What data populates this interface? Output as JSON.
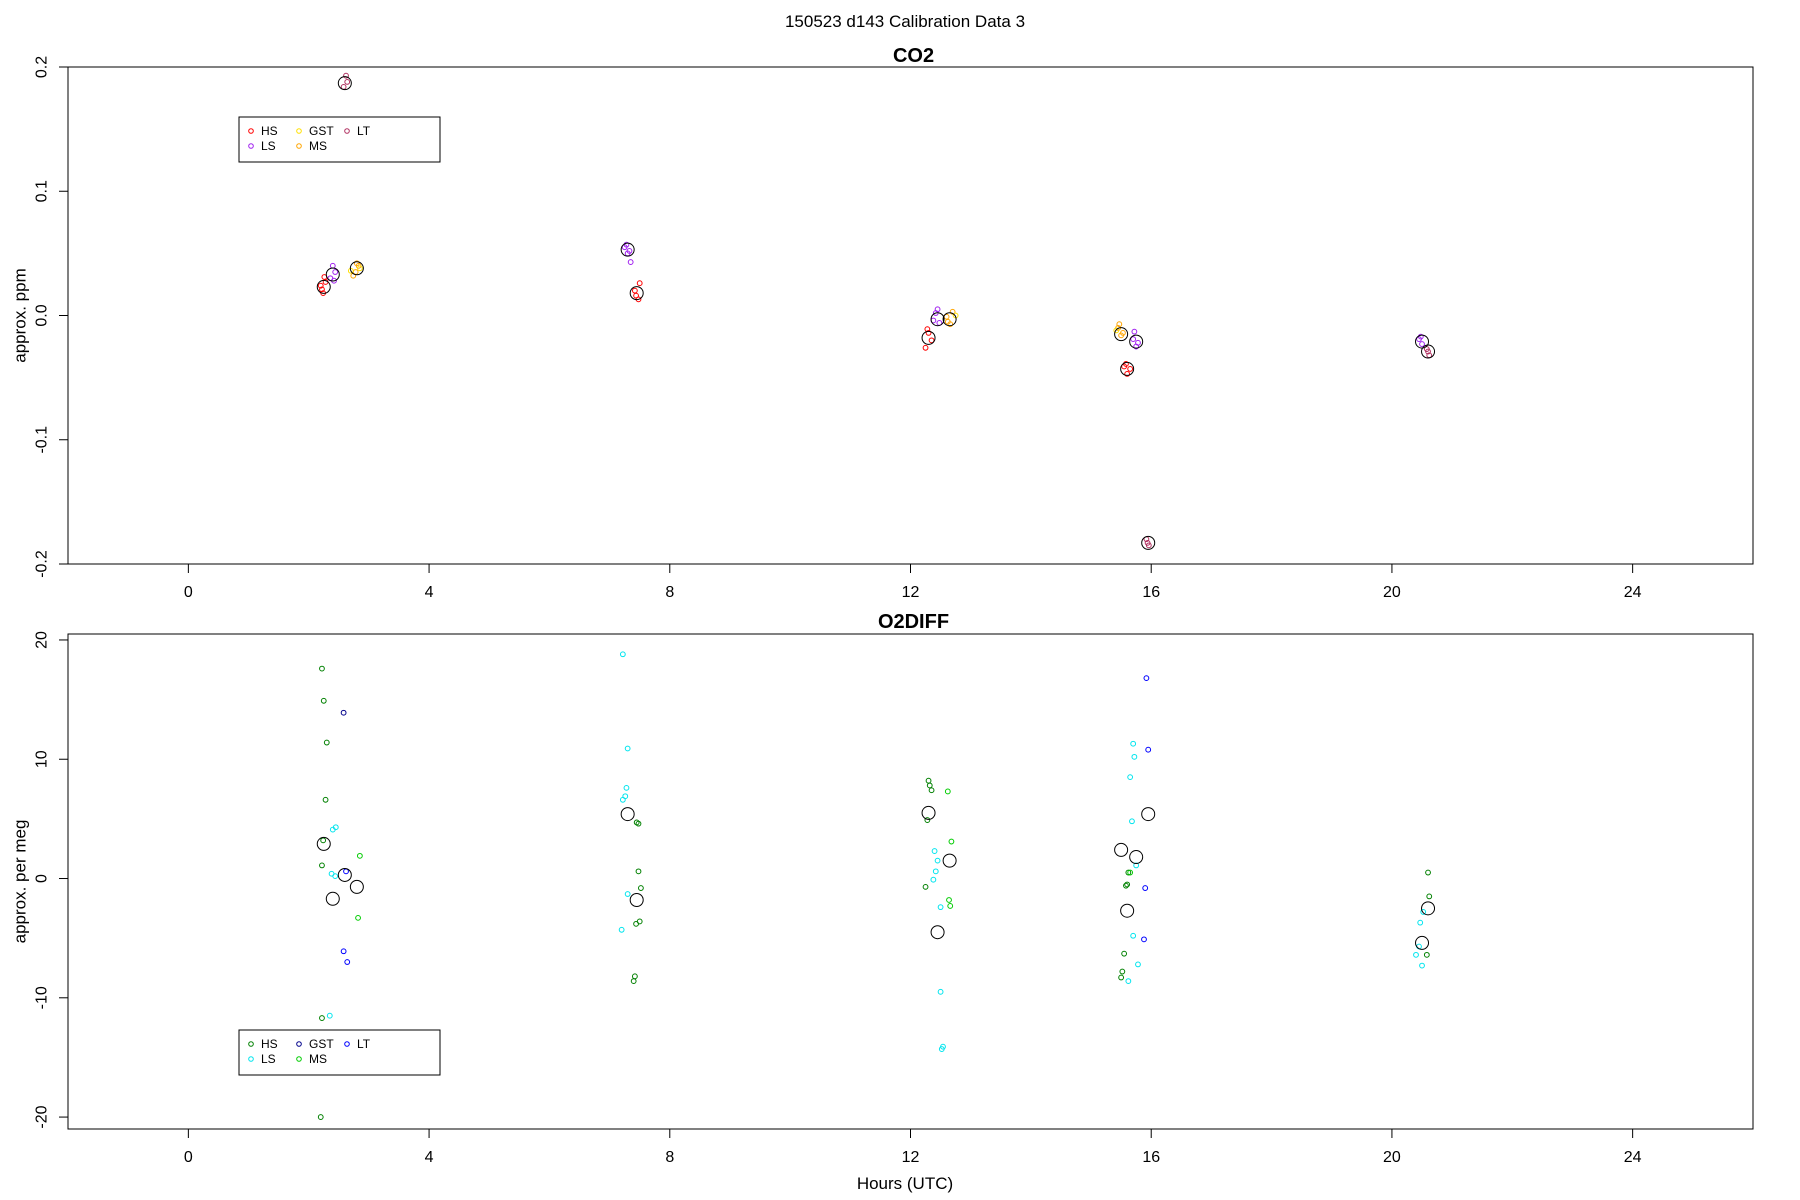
{
  "figure": {
    "title": "150523   d143   Calibration Data 3",
    "xlabel": "Hours (UTC)"
  },
  "chart_data": [
    {
      "type": "scatter",
      "title": "CO2",
      "xlabel": "",
      "ylabel": "approx. ppm",
      "xlim": [
        -2,
        26
      ],
      "ylim": [
        -0.2,
        0.2
      ],
      "xticks": [
        0,
        4,
        8,
        12,
        16,
        20,
        24
      ],
      "yticks": [
        -0.2,
        -0.1,
        0.0,
        0.1,
        0.2
      ],
      "ytick_labels": [
        "-0.2",
        "-0.1",
        "0.0",
        "0.1",
        "0.2"
      ],
      "grid": false,
      "legend_placement": "top-left",
      "legend": [
        {
          "name": "HS",
          "color": "#ff0000"
        },
        {
          "name": "LS",
          "color": "#a020f0"
        },
        {
          "name": "GST",
          "color": "#ffe000"
        },
        {
          "name": "MS",
          "color": "#ffa500"
        },
        {
          "name": "LT",
          "color": "#b03060"
        }
      ],
      "means": [
        {
          "x": 2.25,
          "y": 0.023
        },
        {
          "x": 2.4,
          "y": 0.033
        },
        {
          "x": 2.6,
          "y": 0.187
        },
        {
          "x": 2.8,
          "y": 0.038
        },
        {
          "x": 7.3,
          "y": 0.053
        },
        {
          "x": 7.45,
          "y": 0.018
        },
        {
          "x": 12.3,
          "y": -0.018
        },
        {
          "x": 12.45,
          "y": -0.003
        },
        {
          "x": 12.65,
          "y": -0.003
        },
        {
          "x": 15.5,
          "y": -0.015
        },
        {
          "x": 15.6,
          "y": -0.043
        },
        {
          "x": 15.75,
          "y": -0.021
        },
        {
          "x": 15.95,
          "y": -0.183
        },
        {
          "x": 20.5,
          "y": -0.021
        },
        {
          "x": 20.6,
          "y": -0.029
        }
      ],
      "series": [
        {
          "name": "HS",
          "color": "#ff0000",
          "points": [
            [
              2.2,
              0.024
            ],
            [
              2.24,
              0.018
            ],
            [
              2.28,
              0.027
            ],
            [
              2.22,
              0.021
            ],
            [
              2.26,
              0.031
            ],
            [
              7.42,
              0.02
            ],
            [
              7.48,
              0.013
            ],
            [
              7.5,
              0.026
            ],
            [
              7.44,
              0.016
            ],
            [
              12.25,
              -0.026
            ],
            [
              12.3,
              -0.014
            ],
            [
              12.35,
              -0.02
            ],
            [
              12.28,
              -0.011
            ],
            [
              15.55,
              -0.041
            ],
            [
              15.6,
              -0.047
            ],
            [
              15.65,
              -0.043
            ],
            [
              15.58,
              -0.039
            ]
          ]
        },
        {
          "name": "MS",
          "color": "#ffa500",
          "points": [
            [
              2.78,
              0.035
            ],
            [
              2.83,
              0.04
            ],
            [
              2.74,
              0.032
            ],
            [
              2.8,
              0.042
            ],
            [
              12.6,
              -0.001
            ],
            [
              12.66,
              -0.007
            ],
            [
              12.7,
              0.003
            ],
            [
              12.62,
              -0.005
            ],
            [
              15.45,
              -0.01
            ],
            [
              15.5,
              -0.016
            ],
            [
              15.47,
              -0.007
            ],
            [
              15.53,
              -0.014
            ]
          ]
        },
        {
          "name": "LS",
          "color": "#a020f0",
          "points": [
            [
              2.4,
              0.04
            ],
            [
              2.36,
              0.03
            ],
            [
              2.44,
              0.035
            ],
            [
              2.42,
              0.028
            ],
            [
              7.25,
              0.055
            ],
            [
              7.3,
              0.05
            ],
            [
              7.35,
              0.043
            ],
            [
              7.28,
              0.057
            ],
            [
              7.33,
              0.052
            ],
            [
              12.42,
              0.002
            ],
            [
              12.48,
              -0.006
            ],
            [
              12.45,
              0.005
            ],
            [
              12.38,
              -0.004
            ],
            [
              15.72,
              -0.013
            ],
            [
              15.78,
              -0.022
            ],
            [
              15.75,
              -0.025
            ],
            [
              15.7,
              -0.019
            ],
            [
              20.45,
              -0.019
            ],
            [
              20.5,
              -0.023
            ],
            [
              20.48,
              -0.017
            ]
          ]
        },
        {
          "name": "LT",
          "color": "#b03060",
          "points": [
            [
              2.62,
              0.193
            ],
            [
              2.58,
              0.184
            ],
            [
              2.64,
              0.188
            ],
            [
              15.92,
              -0.18
            ],
            [
              15.96,
              -0.185
            ],
            [
              15.94,
              -0.183
            ],
            [
              20.58,
              -0.027
            ],
            [
              20.62,
              -0.032
            ],
            [
              20.6,
              -0.029
            ]
          ]
        },
        {
          "name": "GST",
          "color": "#ffe000",
          "points": [
            [
              2.7,
              0.036
            ],
            [
              2.85,
              0.038
            ],
            [
              12.75,
              0.0
            ],
            [
              15.42,
              -0.012
            ]
          ]
        }
      ]
    },
    {
      "type": "scatter",
      "title": "O2DIFF",
      "xlabel": "Hours (UTC)",
      "ylabel": "approx. per meg",
      "xlim": [
        -2,
        26
      ],
      "ylim": [
        -21,
        20.5
      ],
      "xticks": [
        0,
        4,
        8,
        12,
        16,
        20,
        24
      ],
      "yticks": [
        -20,
        -10,
        0,
        10,
        20
      ],
      "ytick_labels": [
        "-20",
        "-10",
        "0",
        "10",
        "20"
      ],
      "grid": false,
      "legend_placement": "bottom-left",
      "legend": [
        {
          "name": "HS",
          "color": "#008000"
        },
        {
          "name": "LS",
          "color": "#00e5ee"
        },
        {
          "name": "GST",
          "color": "#00008b"
        },
        {
          "name": "MS",
          "color": "#00cc00"
        },
        {
          "name": "LT",
          "color": "#0000ff"
        }
      ],
      "means": [
        {
          "x": 2.25,
          "y": 2.9
        },
        {
          "x": 2.4,
          "y": -1.7
        },
        {
          "x": 2.6,
          "y": 0.3
        },
        {
          "x": 2.8,
          "y": -0.7
        },
        {
          "x": 7.3,
          "y": 5.4
        },
        {
          "x": 7.45,
          "y": -1.8
        },
        {
          "x": 12.3,
          "y": 5.5
        },
        {
          "x": 12.45,
          "y": -4.5
        },
        {
          "x": 12.65,
          "y": 1.5
        },
        {
          "x": 15.5,
          "y": 2.4
        },
        {
          "x": 15.6,
          "y": -2.7
        },
        {
          "x": 15.75,
          "y": 1.8
        },
        {
          "x": 15.95,
          "y": 5.4
        },
        {
          "x": 20.5,
          "y": -5.4
        },
        {
          "x": 20.6,
          "y": -2.5
        }
      ],
      "series": [
        {
          "name": "HS",
          "color": "#008000",
          "points": [
            [
              2.22,
              17.6
            ],
            [
              2.25,
              14.9
            ],
            [
              2.3,
              11.4
            ],
            [
              2.28,
              6.6
            ],
            [
              2.24,
              3.2
            ],
            [
              2.22,
              1.1
            ],
            [
              2.22,
              -11.7
            ],
            [
              2.2,
              -20
            ],
            [
              7.45,
              4.7
            ],
            [
              7.48,
              4.6
            ],
            [
              7.48,
              0.6
            ],
            [
              7.52,
              -0.8
            ],
            [
              7.5,
              -3.6
            ],
            [
              7.44,
              -3.8
            ],
            [
              7.42,
              -8.2
            ],
            [
              7.4,
              -8.6
            ],
            [
              12.3,
              8.2
            ],
            [
              12.32,
              7.8
            ],
            [
              12.35,
              7.4
            ],
            [
              12.28,
              4.9
            ],
            [
              12.25,
              -0.7
            ],
            [
              15.55,
              -6.3
            ],
            [
              15.6,
              -0.5
            ],
            [
              15.58,
              -0.6
            ],
            [
              15.52,
              -7.8
            ],
            [
              15.5,
              -8.3
            ],
            [
              15.62,
              0.5
            ],
            [
              20.58,
              -6.4
            ],
            [
              20.6,
              0.5
            ],
            [
              20.62,
              -1.5
            ]
          ]
        },
        {
          "name": "MS",
          "color": "#00cc00",
          "points": [
            [
              2.85,
              1.9
            ],
            [
              2.82,
              -3.3
            ],
            [
              12.62,
              7.3
            ],
            [
              12.68,
              3.1
            ],
            [
              12.64,
              -1.8
            ],
            [
              12.66,
              -2.3
            ],
            [
              15.65,
              0.5
            ]
          ]
        },
        {
          "name": "LS",
          "color": "#00e5ee",
          "points": [
            [
              2.4,
              4.1
            ],
            [
              2.45,
              4.3
            ],
            [
              2.38,
              0.4
            ],
            [
              2.44,
              0.2
            ],
            [
              2.35,
              -11.5
            ],
            [
              7.22,
              18.8
            ],
            [
              7.3,
              10.9
            ],
            [
              7.28,
              7.6
            ],
            [
              7.26,
              6.9
            ],
            [
              7.22,
              6.6
            ],
            [
              7.3,
              -1.3
            ],
            [
              7.2,
              -4.3
            ],
            [
              12.4,
              2.3
            ],
            [
              12.45,
              1.5
            ],
            [
              12.42,
              0.6
            ],
            [
              12.38,
              -0.1
            ],
            [
              12.5,
              -2.4
            ],
            [
              12.5,
              -9.5
            ],
            [
              12.52,
              -14.3
            ],
            [
              12.54,
              -14.1
            ],
            [
              15.7,
              11.3
            ],
            [
              15.72,
              10.2
            ],
            [
              15.65,
              8.5
            ],
            [
              15.68,
              4.8
            ],
            [
              15.75,
              1.1
            ],
            [
              15.7,
              -4.8
            ],
            [
              15.78,
              -7.2
            ],
            [
              15.62,
              -8.6
            ],
            [
              20.4,
              -6.4
            ],
            [
              20.45,
              -5.7
            ],
            [
              20.5,
              -7.3
            ],
            [
              20.47,
              -3.7
            ],
            [
              20.52,
              -2.8
            ]
          ]
        },
        {
          "name": "LT",
          "color": "#0000ff",
          "points": [
            [
              2.62,
              0.6
            ],
            [
              2.58,
              -6.1
            ],
            [
              2.64,
              -7.0
            ],
            [
              15.92,
              16.8
            ],
            [
              15.95,
              10.8
            ],
            [
              15.9,
              -0.8
            ],
            [
              15.88,
              -5.1
            ]
          ]
        },
        {
          "name": "GST",
          "color": "#00008b",
          "points": [
            [
              2.58,
              13.9
            ]
          ]
        }
      ]
    }
  ]
}
